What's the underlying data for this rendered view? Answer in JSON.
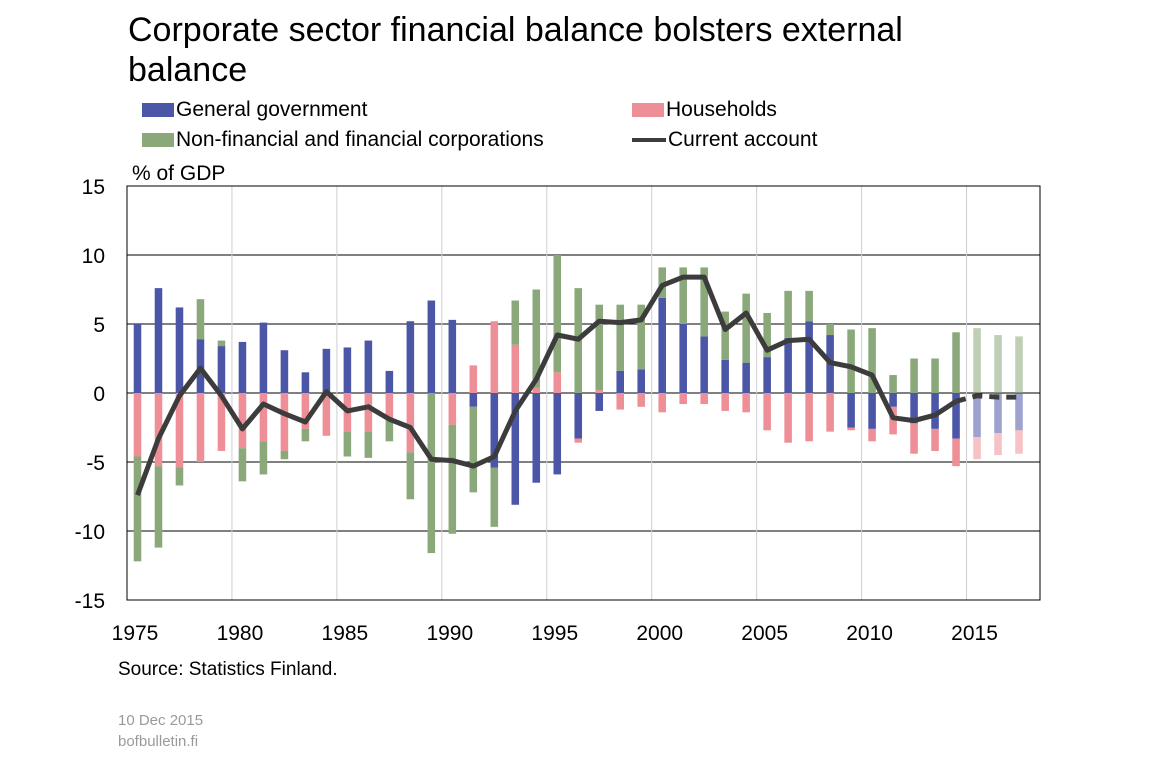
{
  "title": "Corporate sector financial balance bolsters external balance",
  "source": "Source: Statistics Finland.",
  "footer": {
    "date": "10 Dec 2015",
    "site": "bofbulletin.fi"
  },
  "chart_data": {
    "type": "bar",
    "subtype": "stacked bar with line overlay",
    "ylabel": "% of GDP",
    "ylim": [
      -15,
      15
    ],
    "yticks": [
      15,
      10,
      5,
      0,
      -5,
      -10,
      -15
    ],
    "xticks": [
      1975,
      1980,
      1985,
      1990,
      1995,
      2000,
      2005,
      2010,
      2015
    ],
    "grid": "horizontal",
    "legend_position": "top",
    "forecast_from": 2015,
    "categories": [
      1975,
      1976,
      1977,
      1978,
      1979,
      1980,
      1981,
      1982,
      1983,
      1984,
      1985,
      1986,
      1987,
      1988,
      1989,
      1990,
      1991,
      1992,
      1993,
      1994,
      1995,
      1996,
      1997,
      1998,
      1999,
      2000,
      2001,
      2002,
      2003,
      2004,
      2005,
      2006,
      2007,
      2008,
      2009,
      2010,
      2011,
      2012,
      2013,
      2014,
      2015,
      2016,
      2017
    ],
    "series": [
      {
        "name": "General government",
        "type": "bar",
        "color": "#4c56a6",
        "values": [
          5.0,
          7.6,
          6.2,
          3.9,
          3.4,
          3.7,
          5.1,
          3.1,
          1.5,
          3.2,
          3.3,
          3.8,
          1.6,
          5.2,
          6.7,
          5.3,
          -1.0,
          -5.4,
          -8.1,
          -6.5,
          -5.9,
          -3.3,
          -1.3,
          1.6,
          1.7,
          6.9,
          5.0,
          4.1,
          2.4,
          2.2,
          2.6,
          4.0,
          5.2,
          4.2,
          -2.5,
          -2.6,
          -1.0,
          -2.2,
          -2.6,
          -3.3,
          -3.2,
          -2.9,
          -2.7
        ]
      },
      {
        "name": "Households",
        "type": "bar",
        "color": "#ee8f97",
        "values": [
          -4.6,
          -5.3,
          -5.4,
          -5.0,
          -4.2,
          -4.0,
          -3.5,
          -4.2,
          -2.6,
          -3.1,
          -2.8,
          -2.8,
          -2.0,
          -4.3,
          0.0,
          -2.3,
          2.0,
          5.2,
          3.5,
          0.4,
          1.5,
          -0.3,
          0.2,
          -1.2,
          -1.0,
          -1.4,
          -0.8,
          -0.8,
          -1.3,
          -1.4,
          -2.7,
          -3.6,
          -3.5,
          -2.8,
          -0.2,
          -0.9,
          -2.0,
          -2.2,
          -1.6,
          -2.0,
          -1.6,
          -1.6,
          -1.7
        ]
      },
      {
        "name": "Non-financial and financial corporations",
        "type": "bar",
        "color": "#8aa87a",
        "values": [
          -7.6,
          -5.9,
          -1.3,
          2.9,
          0.4,
          -2.4,
          -2.4,
          -0.6,
          -0.9,
          0.0,
          -1.8,
          -1.9,
          -1.5,
          -3.4,
          -11.6,
          -7.9,
          -6.2,
          -4.3,
          3.2,
          7.1,
          8.5,
          7.6,
          6.2,
          4.8,
          4.7,
          2.2,
          4.1,
          5.0,
          3.5,
          5.0,
          3.2,
          3.4,
          2.2,
          0.8,
          4.6,
          4.7,
          1.3,
          2.5,
          2.5,
          4.4,
          4.7,
          4.2,
          4.1
        ]
      },
      {
        "name": "Current account",
        "type": "line",
        "color": "#3c3c3c",
        "values": [
          -7.4,
          -3.3,
          -0.2,
          1.8,
          -0.2,
          -2.6,
          -0.8,
          -1.5,
          -2.1,
          0.1,
          -1.3,
          -1.0,
          -1.9,
          -2.5,
          -4.8,
          -4.9,
          -5.3,
          -4.6,
          -1.3,
          1.0,
          4.2,
          3.9,
          5.2,
          5.1,
          5.3,
          7.8,
          8.4,
          8.4,
          4.6,
          5.8,
          3.1,
          3.8,
          3.9,
          2.2,
          1.9,
          1.3,
          -1.8,
          -2.0,
          -1.6,
          -0.6,
          -0.2,
          -0.3,
          -0.3
        ]
      }
    ]
  }
}
